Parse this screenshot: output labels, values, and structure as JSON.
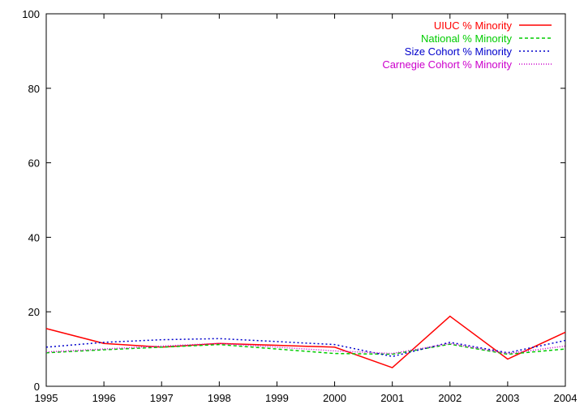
{
  "chart_data": {
    "type": "line",
    "title": "",
    "xlabel": "",
    "ylabel": "",
    "x": [
      "1995",
      "1996",
      "1997",
      "1998",
      "1999",
      "2000",
      "2001",
      "2002",
      "2003",
      "2004"
    ],
    "xlim": [
      1995,
      2004
    ],
    "ylim": [
      0,
      100
    ],
    "yticks": [
      "0",
      "20",
      "40",
      "60",
      "80",
      "100"
    ],
    "grid": false,
    "legend_position": "top-right",
    "series": [
      {
        "name": "UIUC % Minority",
        "color": "#ff0000",
        "dash": "solid",
        "values": [
          15.5,
          11.5,
          10.5,
          11.5,
          11.0,
          10.5,
          5.0,
          18.8,
          7.3,
          14.5
        ]
      },
      {
        "name": "National % Minority",
        "color": "#00cc00",
        "dash": "dashed",
        "values": [
          9.0,
          9.8,
          10.5,
          11.2,
          10.0,
          8.8,
          8.6,
          11.3,
          8.6,
          10.0
        ]
      },
      {
        "name": "Size Cohort % Minority",
        "color": "#0000cc",
        "dash": "dotted",
        "values": [
          10.5,
          11.8,
          12.5,
          12.8,
          12.0,
          11.2,
          8.0,
          11.8,
          9.0,
          12.3
        ]
      },
      {
        "name": "Carnegie Cohort % Minority",
        "color": "#cc00cc",
        "dash": "dotted-fine",
        "values": [
          9.2,
          10.0,
          10.8,
          11.5,
          10.5,
          9.5,
          8.8,
          11.5,
          8.8,
          10.8
        ]
      }
    ]
  }
}
